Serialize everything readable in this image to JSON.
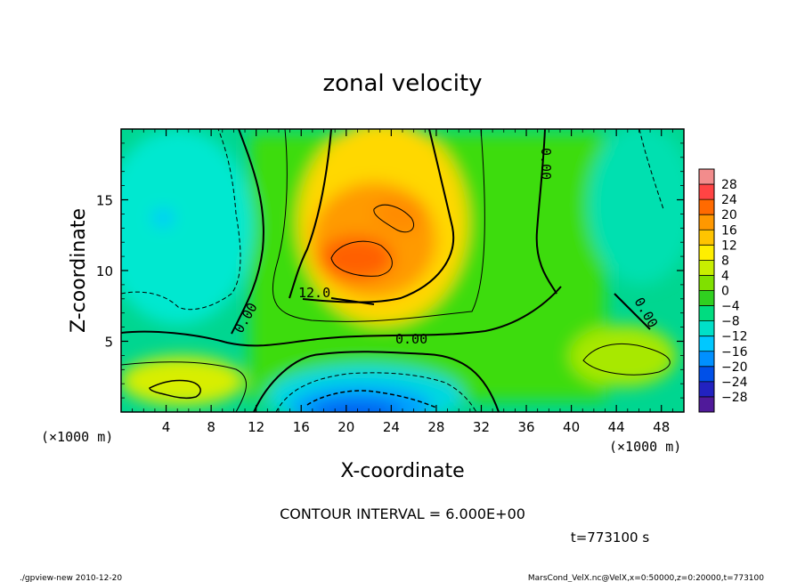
{
  "chart_data": {
    "type": "heatmap",
    "title": "zonal velocity",
    "xlabel": "X-coordinate",
    "ylabel": "Z-coordinate",
    "x_unit_left": "(×1000 m)",
    "x_unit_right": "(×1000 m)",
    "xlim": [
      0,
      50
    ],
    "ylim": [
      0,
      20
    ],
    "x_ticks": [
      4,
      8,
      12,
      16,
      20,
      24,
      28,
      32,
      36,
      40,
      44,
      48
    ],
    "y_ticks": [
      5,
      10,
      15
    ],
    "colorbar_levels": [
      28,
      24,
      20,
      16,
      12,
      8,
      4,
      0,
      -4,
      -8,
      -12,
      -16,
      -20,
      -24,
      -28
    ],
    "colorbar_colors": [
      "#f28c8c",
      "#ff4444",
      "#ff6a00",
      "#ff9800",
      "#ffc400",
      "#ffee00",
      "#c8ee00",
      "#80e000",
      "#30d020",
      "#00dc80",
      "#00e0c8",
      "#00c8ff",
      "#0090ff",
      "#0050e8",
      "#2222c0",
      "#501a9a"
    ],
    "contour_labels": [
      "12.0",
      "0.00",
      "0.00",
      "0.00",
      "0.00"
    ],
    "contour_interval_text": "CONTOUR INTERVAL = 6.000E+00",
    "time_text": "t=773100 s",
    "field_samples": [
      {
        "x": 5,
        "z": 14,
        "value": -10
      },
      {
        "x": 5,
        "z": 2,
        "value": 8
      },
      {
        "x": 21,
        "z": 11,
        "value": 20
      },
      {
        "x": 23,
        "z": 14,
        "value": 16
      },
      {
        "x": 22,
        "z": 1,
        "value": -20
      },
      {
        "x": 44,
        "z": 3,
        "value": 4
      },
      {
        "x": 44,
        "z": 15,
        "value": -6
      }
    ]
  },
  "footer": {
    "left": "./gpview-new  2010-12-20",
    "right": "MarsCond_VelX.nc@VelX,x=0:50000,z=0:20000,t=773100"
  }
}
